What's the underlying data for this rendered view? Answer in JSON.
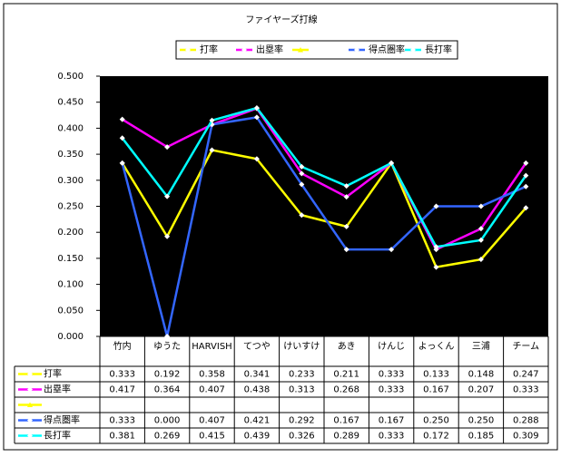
{
  "chart_data": {
    "type": "line",
    "title": "ファイヤーズ打線",
    "categories": [
      "竹内",
      "ゆうた",
      "HARVISH",
      "てつや",
      "けいすけ",
      "あき",
      "けんじ",
      "よっくん",
      "三浦",
      "チーム"
    ],
    "series": [
      {
        "name": "打率",
        "color": "#ffff00",
        "values": [
          0.333,
          0.192,
          0.358,
          0.341,
          0.233,
          0.211,
          0.333,
          0.133,
          0.148,
          0.247
        ],
        "value_labels": [
          "0.333",
          "0.192",
          "0.358",
          "0.341",
          "0.233",
          "0.211",
          "0.333",
          "0.133",
          "0.148",
          "0.247"
        ]
      },
      {
        "name": "出塁率",
        "color": "#ff00ff",
        "values": [
          0.417,
          0.364,
          0.407,
          0.438,
          0.313,
          0.268,
          0.333,
          0.167,
          0.207,
          0.333
        ],
        "value_labels": [
          "0.417",
          "0.364",
          "0.407",
          "0.438",
          "0.313",
          "0.268",
          "0.333",
          "0.167",
          "0.207",
          "0.333"
        ]
      },
      {
        "color": "#ffff00",
        "marker": "triangle",
        "values": [
          null,
          null,
          null,
          null,
          null,
          null,
          null,
          null,
          null,
          null
        ]
      },
      {
        "name": "得点圏率",
        "color": "#3366ff",
        "values": [
          0.333,
          0.0,
          0.407,
          0.421,
          0.292,
          0.167,
          0.167,
          0.25,
          0.25,
          0.288
        ],
        "value_labels": [
          "0.333",
          "0.000",
          "0.407",
          "0.421",
          "0.292",
          "0.167",
          "0.167",
          "0.250",
          "0.250",
          "0.288"
        ]
      },
      {
        "name": "長打率",
        "color": "#00ffff",
        "values": [
          0.381,
          0.269,
          0.415,
          0.439,
          0.326,
          0.289,
          0.333,
          0.172,
          0.185,
          0.309
        ],
        "value_labels": [
          "0.381",
          "0.269",
          "0.415",
          "0.439",
          "0.326",
          "0.289",
          "0.333",
          "0.172",
          "0.185",
          "0.309"
        ]
      }
    ],
    "ylim": [
      0,
      0.5
    ],
    "yticks": [
      {
        "value": 0,
        "label": "0.000"
      },
      {
        "value": 0.05,
        "label": "0.050"
      },
      {
        "value": 0.1,
        "label": "0.100"
      },
      {
        "value": 0.15,
        "label": "0.150"
      },
      {
        "value": 0.2,
        "label": "0.200"
      },
      {
        "value": 0.25,
        "label": "0.250"
      },
      {
        "value": 0.3,
        "label": "0.300"
      },
      {
        "value": 0.35,
        "label": "0.350"
      },
      {
        "value": 0.4,
        "label": "0.400"
      },
      {
        "value": 0.45,
        "label": "0.450"
      },
      {
        "value": 0.5,
        "label": "0.500"
      }
    ],
    "plot_background": "#000000",
    "legend": "top"
  }
}
